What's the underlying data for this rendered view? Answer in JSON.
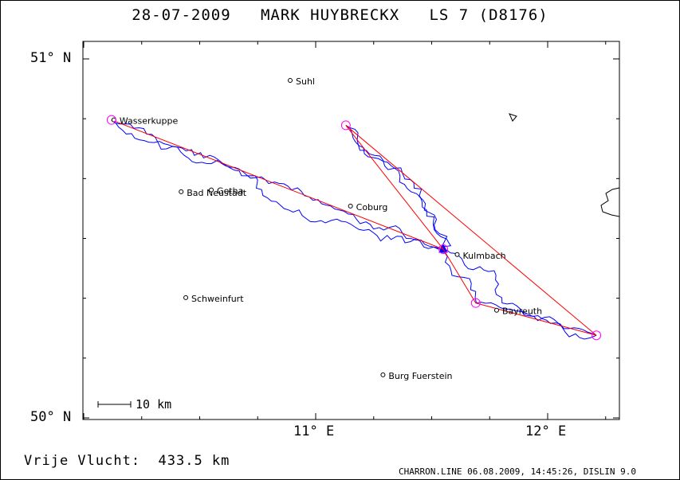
{
  "title": "28-07-2009   MARK HUYBRECKX   LS 7 (D8176)",
  "axes": {
    "lat_labels": [
      "51° N",
      "50° N"
    ],
    "lon_labels": [
      "11° E",
      "12° E"
    ]
  },
  "towns": [
    {
      "name": "Suhl",
      "lon": 10.89,
      "lat": 50.94
    },
    {
      "name": "Wasserkuppe",
      "lon": 10.13,
      "lat": 50.83
    },
    {
      "name": "Bad Neustadt",
      "lon": 10.42,
      "lat": 50.63
    },
    {
      "name": "Gotha",
      "lon": 10.55,
      "lat": 50.635
    },
    {
      "name": "Coburg",
      "lon": 11.15,
      "lat": 50.59
    },
    {
      "name": "Kulmbach",
      "lon": 11.61,
      "lat": 50.455
    },
    {
      "name": "Schweinfurt",
      "lon": 10.44,
      "lat": 50.335
    },
    {
      "name": "Bayreuth",
      "lon": 11.78,
      "lat": 50.3
    },
    {
      "name": "Burg Fuerstein",
      "lon": 11.29,
      "lat": 50.12
    }
  ],
  "turnpoints": [
    {
      "lon": 10.12,
      "lat": 50.83
    },
    {
      "lon": 11.55,
      "lat": 50.47
    },
    {
      "lon": 11.69,
      "lat": 50.32
    },
    {
      "lon": 12.21,
      "lat": 50.23
    },
    {
      "lon": 11.13,
      "lat": 50.815
    }
  ],
  "scale_bar": "10 km",
  "distance": "Vrije Vlucht:  433.5 km",
  "footer": "CHARRON.LINE 06.08.2009, 14:45:26, DISLIN 9.0",
  "colors": {
    "track": "#0000ff",
    "task": "#ff0000",
    "turnpoint": "#ff00ff",
    "ink": "#000000"
  }
}
